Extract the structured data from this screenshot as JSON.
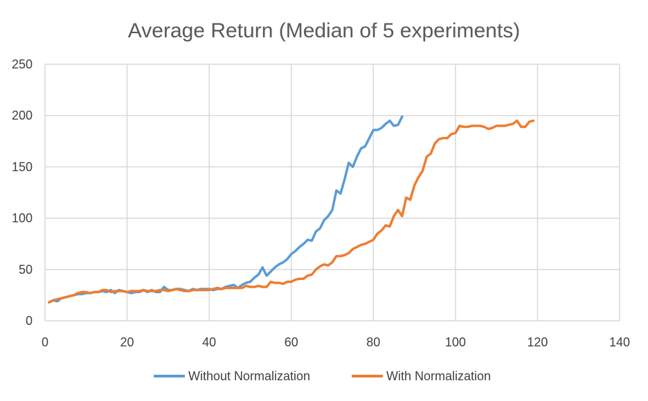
{
  "chart_data": {
    "type": "line",
    "title": "Average Return (Median of 5 experiments)",
    "xlabel": "",
    "ylabel": "",
    "xlim": [
      0,
      140
    ],
    "ylim": [
      0,
      250
    ],
    "xticks": [
      0,
      20,
      40,
      60,
      80,
      100,
      120,
      140
    ],
    "yticks": [
      0,
      50,
      100,
      150,
      200,
      250
    ],
    "grid": true,
    "legend_position": "bottom",
    "series": [
      {
        "name": "Without Normalization",
        "color": "#5b9bd5",
        "x": [
          1,
          2,
          3,
          4,
          5,
          6,
          7,
          8,
          9,
          10,
          11,
          12,
          13,
          14,
          15,
          16,
          17,
          18,
          19,
          20,
          21,
          22,
          23,
          24,
          25,
          26,
          27,
          28,
          29,
          30,
          31,
          32,
          33,
          34,
          35,
          36,
          37,
          38,
          39,
          40,
          41,
          42,
          43,
          44,
          45,
          46,
          47,
          48,
          49,
          50,
          51,
          52,
          53,
          54,
          55,
          56,
          57,
          58,
          59,
          60,
          61,
          62,
          63,
          64,
          65,
          66,
          67,
          68,
          69,
          70,
          71,
          72,
          73,
          74,
          75,
          76,
          77,
          78,
          79,
          80,
          81,
          82,
          83,
          84,
          85,
          86,
          87
        ],
        "y": [
          18,
          20,
          19,
          22,
          23,
          24,
          25,
          26,
          26,
          27,
          27,
          28,
          28,
          29,
          28,
          30,
          27,
          30,
          29,
          28,
          27,
          28,
          28,
          30,
          28,
          30,
          28,
          28,
          33,
          30,
          30,
          31,
          31,
          30,
          29,
          31,
          30,
          31,
          31,
          31,
          30,
          31,
          31,
          33,
          34,
          35,
          32,
          35,
          37,
          38,
          42,
          45,
          52,
          44,
          48,
          52,
          55,
          57,
          60,
          65,
          68,
          72,
          75,
          79,
          78,
          87,
          90,
          98,
          102,
          108,
          127,
          124,
          138,
          154,
          150,
          160,
          168,
          170,
          178,
          186,
          186,
          188,
          192,
          195,
          190,
          191,
          199
        ]
      },
      {
        "name": "With Normalization",
        "color": "#ed7d31",
        "x": [
          1,
          2,
          3,
          4,
          5,
          6,
          7,
          8,
          9,
          10,
          11,
          12,
          13,
          14,
          15,
          16,
          17,
          18,
          19,
          20,
          21,
          22,
          23,
          24,
          25,
          26,
          27,
          28,
          29,
          30,
          31,
          32,
          33,
          34,
          35,
          36,
          37,
          38,
          39,
          40,
          41,
          42,
          43,
          44,
          45,
          46,
          47,
          48,
          49,
          50,
          51,
          52,
          53,
          54,
          55,
          56,
          57,
          58,
          59,
          60,
          61,
          62,
          63,
          64,
          65,
          66,
          67,
          68,
          69,
          70,
          71,
          72,
          73,
          74,
          75,
          76,
          77,
          78,
          79,
          80,
          81,
          82,
          83,
          84,
          85,
          86,
          87,
          88,
          89,
          90,
          91,
          92,
          93,
          94,
          95,
          96,
          97,
          98,
          99,
          100,
          101,
          102,
          103,
          104,
          105,
          106,
          107,
          108,
          109,
          110,
          111,
          112,
          113,
          114,
          115,
          116,
          117,
          118,
          119
        ],
        "y": [
          18,
          20,
          21,
          22,
          23,
          24,
          25,
          27,
          28,
          28,
          27,
          28,
          28,
          30,
          30,
          28,
          29,
          29,
          29,
          28,
          29,
          29,
          29,
          30,
          29,
          29,
          29,
          30,
          30,
          29,
          30,
          31,
          30,
          29,
          29,
          30,
          30,
          30,
          30,
          30,
          31,
          32,
          31,
          32,
          32,
          32,
          32,
          32,
          34,
          33,
          33,
          34,
          33,
          33,
          38,
          37,
          37,
          36,
          38,
          38,
          40,
          41,
          41,
          44,
          45,
          50,
          53,
          55,
          54,
          57,
          63,
          63,
          64,
          66,
          70,
          72,
          74,
          75,
          77,
          79,
          85,
          88,
          93,
          92,
          102,
          108,
          102,
          120,
          118,
          132,
          140,
          146,
          160,
          163,
          173,
          177,
          178,
          178,
          182,
          183,
          190,
          189,
          189,
          190,
          190,
          190,
          189,
          187,
          188,
          190,
          190,
          190,
          191,
          192,
          195,
          189,
          189,
          194,
          195
        ]
      }
    ]
  }
}
